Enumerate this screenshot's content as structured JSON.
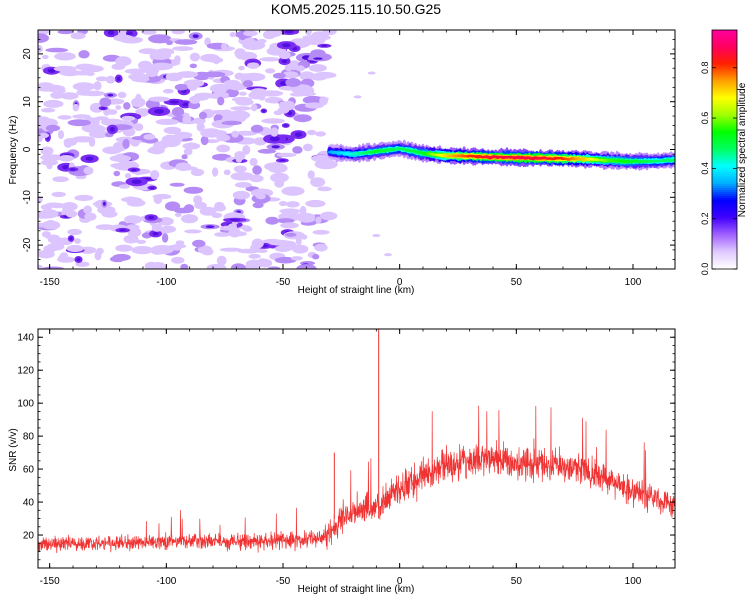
{
  "page": {
    "title": "KOM5.2025.115.10.50.G25"
  },
  "chart_data": [
    {
      "id": "spectrogram",
      "type": "heatmap",
      "xlabel": "Height of straight line (km)",
      "ylabel": "Frequency (Hz)",
      "xlim": [
        -155,
        118
      ],
      "ylim": [
        -25,
        25
      ],
      "x_ticks": [
        -150,
        -100,
        -50,
        0,
        50,
        100
      ],
      "y_ticks": [
        -20,
        -10,
        0,
        10,
        20
      ],
      "grid": false,
      "noise_region_x": [
        -155,
        -30
      ],
      "echo_trace": {
        "x": [
          -30,
          -20,
          -10,
          0,
          10,
          20,
          30,
          40,
          50,
          60,
          70,
          80,
          90,
          100,
          110,
          118
        ],
        "y": [
          -0.5,
          -1.0,
          -0.4,
          0.2,
          -0.8,
          -1.3,
          -1.4,
          -1.6,
          -1.7,
          -1.8,
          -1.9,
          -2.0,
          -2.3,
          -2.5,
          -2.4,
          -2.2
        ],
        "amplitude": [
          0.35,
          0.45,
          0.55,
          0.5,
          0.55,
          0.75,
          0.85,
          0.9,
          0.9,
          0.9,
          0.85,
          0.75,
          0.6,
          0.55,
          0.5,
          0.5
        ]
      },
      "colorbar": {
        "label": "Normalized spectral amplitude",
        "range": [
          0.0,
          0.95
        ],
        "ticks": [
          "0.0",
          "0.2",
          "0.4",
          "0.6",
          "0.8"
        ],
        "tick_values": [
          0.0,
          0.2,
          0.4,
          0.6,
          0.8
        ],
        "colormap": [
          "#ffffff",
          "#e0c8ff",
          "#a060ff",
          "#4000ff",
          "#0000ff",
          "#00b0ff",
          "#00ffff",
          "#00ff60",
          "#00ff00",
          "#a0ff00",
          "#ffff00",
          "#ffa000",
          "#ff2000",
          "#ff0060",
          "#ff00a0"
        ]
      }
    },
    {
      "id": "snr",
      "type": "line",
      "xlabel": "Height of straight line (km)",
      "ylabel": "SNR (v/v)",
      "xlim": [
        -155,
        118
      ],
      "ylim": [
        0,
        145
      ],
      "x_ticks": [
        -150,
        -100,
        -50,
        0,
        50,
        100
      ],
      "y_ticks": [
        20,
        40,
        60,
        80,
        100,
        120,
        140
      ],
      "grid": false,
      "color": "#f03232",
      "series": [
        {
          "x": [
            -155,
            -140,
            -120,
            -100,
            -80,
            -60,
            -45,
            -35,
            -30,
            -25,
            -20,
            -10,
            0,
            10,
            20,
            30,
            40,
            50,
            60,
            70,
            80,
            90,
            100,
            110,
            118
          ],
          "values": [
            14,
            15,
            15,
            16,
            16,
            16,
            17,
            18,
            22,
            30,
            33,
            38,
            48,
            56,
            62,
            65,
            66,
            65,
            64,
            62,
            58,
            54,
            47,
            42,
            38
          ],
          "spread": [
            6,
            6,
            6,
            6,
            6,
            6,
            7,
            8,
            10,
            12,
            12,
            13,
            13,
            13,
            13,
            13,
            13,
            13,
            13,
            12,
            12,
            12,
            12,
            11,
            11
          ]
        }
      ],
      "spikes": [
        {
          "x": -9,
          "y": 145
        },
        {
          "x": -28,
          "y": 70
        }
      ]
    }
  ]
}
